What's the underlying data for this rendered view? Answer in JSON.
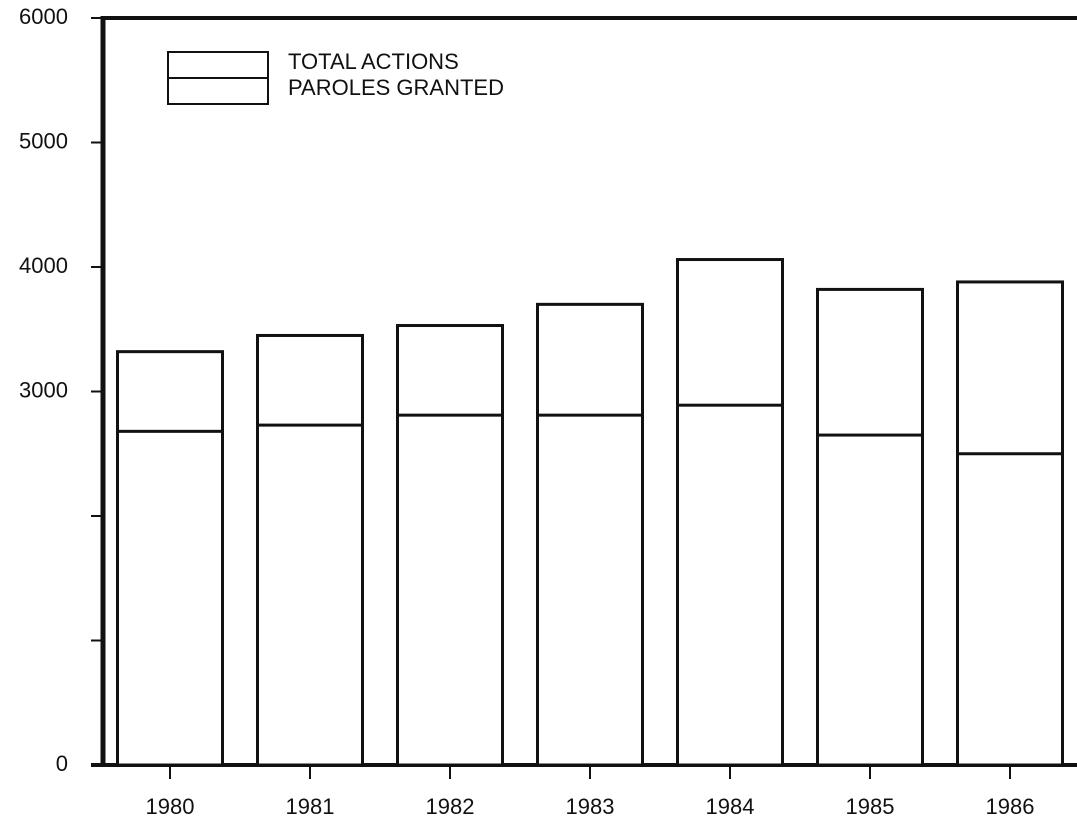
{
  "chart_data": {
    "type": "bar",
    "categories": [
      "1980",
      "1981",
      "1982",
      "1983",
      "1984",
      "1985",
      "1986"
    ],
    "series": [
      {
        "name": "TOTAL ACTIONS",
        "color": "#ffffff",
        "values": [
          3320,
          3450,
          3530,
          3700,
          4060,
          3820,
          3880
        ]
      },
      {
        "name": "PAROLES GRANTED",
        "color": "#ffffff",
        "values": [
          2680,
          2730,
          2810,
          2810,
          2890,
          2650,
          2500
        ]
      }
    ],
    "ylim": [
      0,
      6000
    ],
    "yticks": [
      0,
      3000,
      4000,
      5000,
      6000
    ],
    "yminor_ticks": [
      1000,
      2000
    ],
    "legend": "upper left"
  }
}
